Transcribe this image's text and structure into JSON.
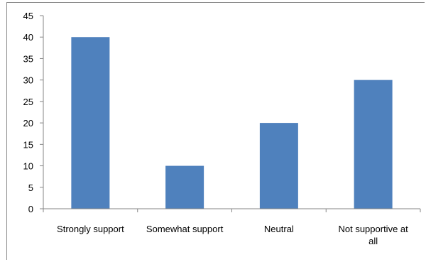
{
  "chart_data": {
    "type": "bar",
    "categories": [
      "Strongly support",
      "Somewhat support",
      "Neutral",
      "Not supportive at all"
    ],
    "category_lines": [
      [
        "Strongly support"
      ],
      [
        "Somewhat support"
      ],
      [
        "Neutral"
      ],
      [
        "Not supportive at",
        "all"
      ]
    ],
    "values": [
      40,
      10,
      20,
      30
    ],
    "ylim": [
      0,
      45
    ],
    "yticks": [
      0,
      5,
      10,
      15,
      20,
      25,
      30,
      35,
      40,
      45
    ],
    "grid": false,
    "legend": "none",
    "bar_color": "#4f81bd",
    "axis_color": "#868686"
  }
}
